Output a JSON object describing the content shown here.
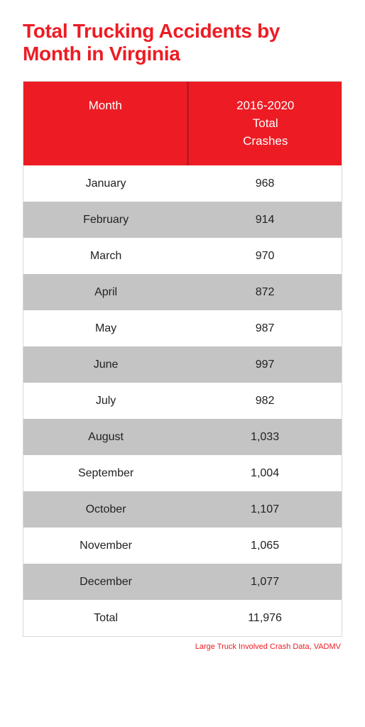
{
  "title": "Total Trucking Accidents by Month in Virginia",
  "table": {
    "type": "table",
    "header_bg_color": "#ed1c24",
    "header_text_color": "#ffffff",
    "row_alt_bg": "#c4c4c4",
    "row_bg": "#ffffff",
    "text_color": "#222222",
    "border_color": "#d9d9d9",
    "columns": [
      {
        "label": "Month"
      },
      {
        "label": "2016-2020\nTotal\nCrashes"
      }
    ],
    "rows": [
      {
        "month": "January",
        "value": "968"
      },
      {
        "month": "February",
        "value": "914"
      },
      {
        "month": "March",
        "value": "970"
      },
      {
        "month": "April",
        "value": "872"
      },
      {
        "month": "May",
        "value": "987"
      },
      {
        "month": "June",
        "value": "997"
      },
      {
        "month": "July",
        "value": "982"
      },
      {
        "month": "August",
        "value": "1,033"
      },
      {
        "month": "September",
        "value": "1,004"
      },
      {
        "month": "October",
        "value": "1,107"
      },
      {
        "month": "November",
        "value": "1,065"
      },
      {
        "month": "December",
        "value": "1,077"
      },
      {
        "month": "Total",
        "value": "11,976"
      }
    ]
  },
  "title_color": "#ed1c24",
  "source_text": "Large Truck Involved Crash Data, VADMV",
  "source_color": "#ed1c24"
}
